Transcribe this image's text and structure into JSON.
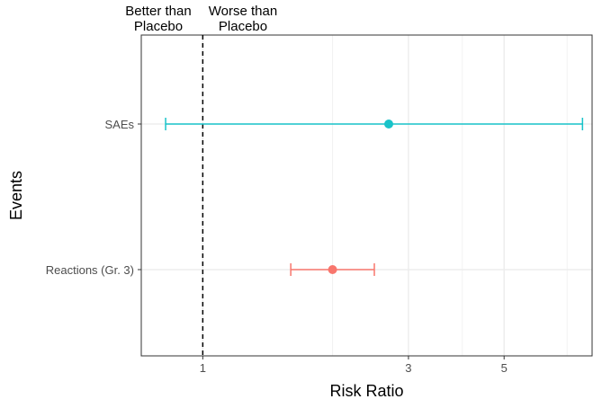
{
  "annotations": {
    "left": [
      "Better than",
      "Placebo"
    ],
    "right": [
      "Worse than",
      "Placebo"
    ]
  },
  "colors": {
    "saes": "#19C3C9",
    "reactions": "#F8766D"
  },
  "chart_data": {
    "type": "forest",
    "xlabel": "Risk Ratio",
    "ylabel": "Events",
    "x_scale": "log",
    "xlim": [
      0.72,
      8.0
    ],
    "x_ticks": [
      1,
      3,
      5
    ],
    "reference_line": {
      "x": 1,
      "style": "dashed"
    },
    "grid": true,
    "categories": [
      "SAEs",
      "Reactions (Gr. 3)"
    ],
    "series": [
      {
        "category": "SAEs",
        "estimate": 2.7,
        "lower": 0.82,
        "upper": 7.6
      },
      {
        "category": "Reactions (Gr. 3)",
        "estimate": 2.0,
        "lower": 1.6,
        "upper": 2.5
      }
    ]
  }
}
